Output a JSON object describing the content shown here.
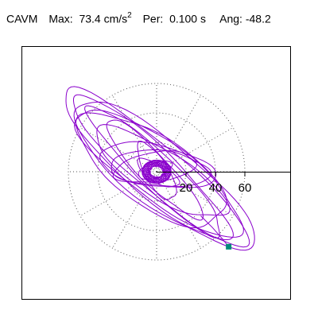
{
  "header": {
    "label": "CAVM",
    "max_label": "Max:",
    "max_value": "73.4 cm/s",
    "max_exp": "2",
    "per_label": "Per:",
    "per_value": "0.100 s",
    "ang_label": "Ang:",
    "ang_value": "-48.2"
  },
  "colors": {
    "trace": "#8a00cc",
    "marker": "#008b7a",
    "grid": "#555555",
    "axis": "#000000"
  },
  "chart_data": {
    "type": "polar-orbit",
    "title": "CAVM",
    "max": 73.4,
    "max_unit": "cm/s²",
    "period_s": 0.1,
    "angle_deg": -48.2,
    "radial_ticks": [
      20,
      40,
      60
    ],
    "radial_tick_labels": [
      "20",
      "40",
      "60"
    ],
    "rmax": 60,
    "grid": true,
    "radial_grid_angles_deg": [
      0,
      30,
      60,
      90,
      120,
      150,
      180,
      210,
      240,
      270,
      300,
      330
    ],
    "xlim": [
      -80,
      80
    ],
    "ylim": [
      -75,
      75
    ],
    "marker_point": {
      "x": 49,
      "y": -51
    },
    "orbit": {
      "ellipses": [
        {
          "a": 80,
          "b": 18,
          "angle": -40,
          "dx": -2,
          "dy": 2
        },
        {
          "a": 76,
          "b": 22,
          "angle": -38,
          "dx": 4,
          "dy": -2
        },
        {
          "a": 72,
          "b": 14,
          "angle": -42,
          "dx": -4,
          "dy": 4
        },
        {
          "a": 68,
          "b": 20,
          "angle": -36,
          "dx": 2,
          "dy": 0
        },
        {
          "a": 62,
          "b": 12,
          "angle": -44,
          "dx": 0,
          "dy": 0
        },
        {
          "a": 58,
          "b": 24,
          "angle": -34,
          "dx": -3,
          "dy": 1
        },
        {
          "a": 52,
          "b": 16,
          "angle": -32,
          "dx": 3,
          "dy": -1
        },
        {
          "a": 46,
          "b": 10,
          "angle": -46,
          "dx": -2,
          "dy": 2
        },
        {
          "a": 40,
          "b": 14,
          "angle": -10,
          "dx": 0,
          "dy": 4
        },
        {
          "a": 34,
          "b": 12,
          "angle": -5,
          "dx": 2,
          "dy": 2
        },
        {
          "a": 28,
          "b": 10,
          "angle": 8,
          "dx": -1,
          "dy": 3
        },
        {
          "a": 22,
          "b": 8,
          "angle": -60,
          "dx": 0,
          "dy": 0
        },
        {
          "a": 16,
          "b": 6,
          "angle": -30,
          "dx": 1,
          "dy": -1
        },
        {
          "a": 12,
          "b": 5,
          "angle": 20,
          "dx": -1,
          "dy": 1
        },
        {
          "a": 8,
          "b": 4,
          "angle": -50,
          "dx": 0,
          "dy": 0
        }
      ],
      "end_segment": [
        {
          "x": 30,
          "y": -30
        },
        {
          "x": 38,
          "y": -38
        },
        {
          "x": 45,
          "y": -46
        },
        {
          "x": 49,
          "y": -51
        }
      ]
    }
  }
}
